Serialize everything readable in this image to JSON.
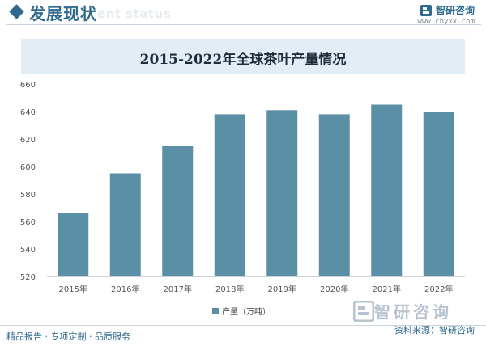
{
  "header": {
    "section_title": "发展现状",
    "section_en_fragment": "ent status",
    "brand_name": "智研咨询",
    "brand_url": "www.chyxx.com"
  },
  "footer": {
    "services": "精品报告 · 专项定制 · 品质服务",
    "source": "资料来源：智研咨询"
  },
  "watermark": {
    "brand": "智研咨询"
  },
  "colors": {
    "bar": "#5b8fa6",
    "accent": "#2f6a8e",
    "banner": "#e3edf5"
  },
  "chart_data": {
    "type": "bar",
    "title": "2015-2022年全球茶叶产量情况",
    "categories": [
      "2015年",
      "2016年",
      "2017年",
      "2018年",
      "2019年",
      "2020年",
      "2021年",
      "2022年"
    ],
    "series": [
      {
        "name": "产量（万吨）",
        "values": [
          566,
          595,
          615,
          638,
          641,
          638,
          645,
          640
        ]
      }
    ],
    "ylim": [
      520,
      660
    ],
    "yticks": [
      520,
      540,
      560,
      580,
      600,
      620,
      640,
      660
    ],
    "grid": false,
    "legend": "bottom-center"
  }
}
